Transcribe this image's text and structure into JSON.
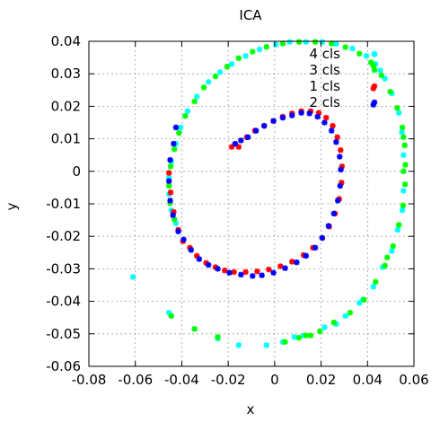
{
  "chart_data": {
    "type": "scatter",
    "title": "ICA",
    "xlabel": "x",
    "ylabel": "y",
    "xlim": [
      -0.08,
      0.06
    ],
    "ylim": [
      -0.06,
      0.04
    ],
    "xticks": [
      "-0.08",
      "-0.06",
      "-0.04",
      "-0.02",
      "0",
      "0.02",
      "0.04",
      "0.06"
    ],
    "yticks": [
      "0.04",
      "0.03",
      "0.02",
      "0.01",
      "0",
      "-0.01",
      "-0.02",
      "-0.03",
      "-0.04",
      "-0.05",
      "-0.06"
    ],
    "grid": true,
    "legend_position": "top-right",
    "series": [
      {
        "name": "4 cls",
        "color": "#00ffff",
        "points": [
          [
            -0.061,
            -0.0325
          ],
          [
            -0.0455,
            -0.0435
          ],
          [
            -0.0345,
            -0.0485
          ],
          [
            -0.0245,
            -0.0515
          ],
          [
            -0.0155,
            -0.0535
          ],
          [
            -0.0035,
            -0.0535
          ],
          [
            0.0035,
            -0.0525
          ],
          [
            0.0085,
            -0.051
          ],
          [
            0.0125,
            -0.0505
          ],
          [
            0.0215,
            -0.048
          ],
          [
            0.0305,
            -0.0445
          ],
          [
            0.0365,
            -0.0405
          ],
          [
            0.0425,
            -0.0355
          ],
          [
            0.0465,
            -0.0295
          ],
          [
            0.0505,
            -0.0245
          ],
          [
            0.053,
            -0.018
          ],
          [
            0.055,
            -0.012
          ],
          [
            0.0555,
            -0.006
          ],
          [
            0.0555,
            0.0
          ],
          [
            0.0555,
            0.005
          ],
          [
            0.0548,
            0.012
          ],
          [
            0.0535,
            0.018
          ],
          [
            0.0505,
            0.024
          ],
          [
            0.0475,
            0.0285
          ],
          [
            0.0435,
            0.033
          ],
          [
            0.0395,
            0.0355
          ],
          [
            0.0335,
            0.0378
          ],
          [
            0.0265,
            0.0392
          ],
          [
            0.0205,
            0.0398
          ],
          [
            0.0135,
            0.0398
          ],
          [
            0.0065,
            0.0398
          ],
          [
            0.0005,
            0.039
          ],
          [
            -0.0065,
            0.0375
          ],
          [
            -0.0125,
            0.0355
          ],
          [
            -0.0185,
            0.033
          ],
          [
            -0.0235,
            0.0305
          ],
          [
            -0.0285,
            0.0275
          ],
          [
            -0.0335,
            0.023
          ],
          [
            -0.0375,
            0.0185
          ],
          [
            -0.0405,
            0.0135
          ],
          [
            -0.0425,
            0.0085
          ],
          [
            -0.0445,
            0.003
          ],
          [
            -0.0455,
            -0.002
          ],
          [
            -0.0455,
            -0.007
          ],
          [
            -0.0445,
            -0.012
          ],
          [
            -0.0425,
            -0.016
          ],
          [
            0.043,
            0.036
          ],
          [
            0.0455,
            0.031
          ],
          [
            0.038,
            -0.0395
          ],
          [
            0.0265,
            -0.047
          ]
        ]
      },
      {
        "name": "3 cls",
        "color": "#00ff00",
        "points": [
          [
            -0.0445,
            -0.0445
          ],
          [
            -0.0345,
            -0.0485
          ],
          [
            -0.0245,
            -0.051
          ],
          [
            0.0045,
            -0.0525
          ],
          [
            0.0105,
            -0.0512
          ],
          [
            0.0155,
            -0.0505
          ],
          [
            0.0195,
            -0.0492
          ],
          [
            0.0255,
            -0.0465
          ],
          [
            0.0325,
            -0.0435
          ],
          [
            0.0385,
            -0.0395
          ],
          [
            0.0435,
            -0.034
          ],
          [
            0.0475,
            -0.029
          ],
          [
            0.051,
            -0.023
          ],
          [
            0.0535,
            -0.0165
          ],
          [
            0.0553,
            -0.0105
          ],
          [
            0.0562,
            -0.004
          ],
          [
            0.0563,
            0.002
          ],
          [
            0.056,
            0.008
          ],
          [
            0.055,
            0.0135
          ],
          [
            0.0528,
            0.0195
          ],
          [
            0.0498,
            0.0245
          ],
          [
            0.046,
            0.0295
          ],
          [
            0.0415,
            0.0335
          ],
          [
            0.0365,
            0.0362
          ],
          [
            0.0305,
            0.0382
          ],
          [
            0.0245,
            0.0393
          ],
          [
            0.0175,
            0.0398
          ],
          [
            0.0105,
            0.0398
          ],
          [
            0.0035,
            0.0393
          ],
          [
            -0.0035,
            0.0383
          ],
          [
            -0.0095,
            0.0368
          ],
          [
            -0.0155,
            0.0348
          ],
          [
            -0.0205,
            0.0322
          ],
          [
            -0.0255,
            0.0292
          ],
          [
            -0.0305,
            0.0258
          ],
          [
            -0.0345,
            0.0215
          ],
          [
            -0.0385,
            0.017
          ],
          [
            -0.0412,
            0.0118
          ],
          [
            -0.0432,
            0.0068
          ],
          [
            -0.0448,
            0.0015
          ],
          [
            -0.0455,
            -0.0045
          ],
          [
            -0.045,
            -0.0098
          ],
          [
            -0.0432,
            -0.0148
          ],
          [
            0.0425,
            0.0325
          ],
          [
            0.0135,
            -0.0505
          ],
          [
            0.0485,
            -0.0265
          ],
          [
            0.0555,
            0.0
          ],
          [
            0.0555,
            0.0105
          ]
        ]
      },
      {
        "name": "1 cls",
        "color": "#ff0000",
        "points": [
          [
            -0.0455,
            -0.0005
          ],
          [
            -0.0448,
            -0.0065
          ],
          [
            -0.0435,
            -0.0125
          ],
          [
            -0.0415,
            -0.018
          ],
          [
            -0.0395,
            -0.0215
          ],
          [
            -0.0365,
            -0.0235
          ],
          [
            -0.0335,
            -0.026
          ],
          [
            -0.0295,
            -0.0282
          ],
          [
            -0.0255,
            -0.0295
          ],
          [
            -0.0215,
            -0.0305
          ],
          [
            -0.0175,
            -0.031
          ],
          [
            -0.0125,
            -0.031
          ],
          [
            -0.0075,
            -0.0308
          ],
          [
            -0.0025,
            -0.0302
          ],
          [
            0.0025,
            -0.0292
          ],
          [
            0.0075,
            -0.0278
          ],
          [
            0.0125,
            -0.0258
          ],
          [
            0.0165,
            -0.0235
          ],
          [
            0.0205,
            -0.0205
          ],
          [
            0.0235,
            -0.017
          ],
          [
            0.026,
            -0.013
          ],
          [
            0.0278,
            -0.0085
          ],
          [
            0.0288,
            -0.0035
          ],
          [
            0.029,
            0.0015
          ],
          [
            0.0284,
            0.0065
          ],
          [
            0.027,
            0.0105
          ],
          [
            0.025,
            0.014
          ],
          [
            0.0222,
            0.0165
          ],
          [
            0.019,
            0.018
          ],
          [
            0.0155,
            0.0185
          ],
          [
            0.0115,
            0.0185
          ],
          [
            0.0075,
            0.0178
          ],
          [
            0.0035,
            0.0168
          ],
          [
            -0.0005,
            0.0155
          ],
          [
            -0.0045,
            0.014
          ],
          [
            -0.0085,
            0.0125
          ],
          [
            -0.012,
            0.0105
          ],
          [
            -0.0155,
            0.0075
          ],
          [
            -0.0185,
            0.0075
          ],
          [
            0.0425,
            0.0255
          ]
        ]
      },
      {
        "name": "2 cls",
        "color": "#0000ff",
        "points": [
          [
            -0.0425,
            0.0135
          ],
          [
            -0.0435,
            0.0085
          ],
          [
            -0.045,
            0.0035
          ],
          [
            -0.0455,
            -0.003
          ],
          [
            -0.045,
            -0.009
          ],
          [
            -0.0438,
            -0.0135
          ],
          [
            -0.0415,
            -0.0185
          ],
          [
            -0.0392,
            -0.021
          ],
          [
            -0.036,
            -0.0242
          ],
          [
            -0.0325,
            -0.027
          ],
          [
            -0.0285,
            -0.0288
          ],
          [
            -0.0245,
            -0.03
          ],
          [
            -0.0195,
            -0.0312
          ],
          [
            -0.0145,
            -0.0318
          ],
          [
            -0.0095,
            -0.0322
          ],
          [
            -0.0055,
            -0.032
          ],
          [
            -0.0005,
            -0.0312
          ],
          [
            0.0045,
            -0.0298
          ],
          [
            0.0095,
            -0.028
          ],
          [
            0.0135,
            -0.026
          ],
          [
            0.0175,
            -0.0235
          ],
          [
            0.0205,
            -0.0205
          ],
          [
            0.0232,
            -0.0168
          ],
          [
            0.0255,
            -0.013
          ],
          [
            0.0272,
            -0.009
          ],
          [
            0.0282,
            -0.0045
          ],
          [
            0.0285,
            0.0005
          ],
          [
            0.028,
            0.0045
          ],
          [
            0.0265,
            0.009
          ],
          [
            0.0245,
            0.0125
          ],
          [
            0.0215,
            0.015
          ],
          [
            0.0185,
            0.0168
          ],
          [
            0.015,
            0.0178
          ],
          [
            0.0115,
            0.018
          ],
          [
            0.0075,
            0.0172
          ],
          [
            0.0035,
            0.0165
          ],
          [
            -0.0005,
            0.0155
          ],
          [
            -0.0045,
            0.014
          ],
          [
            -0.008,
            0.0125
          ],
          [
            -0.0115,
            0.0105
          ],
          [
            -0.0145,
            0.0095
          ],
          [
            -0.017,
            0.0085
          ],
          [
            0.0425,
            0.0205
          ]
        ]
      }
    ]
  }
}
